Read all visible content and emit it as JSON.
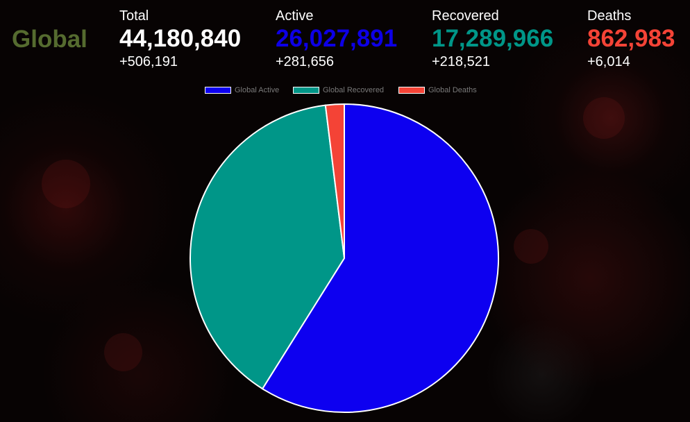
{
  "header": {
    "region_label": "Global",
    "region_color": "#556b2f",
    "stats": [
      {
        "key": "total",
        "label": "Total",
        "value": "44,180,840",
        "delta": "+506,191",
        "color": "#ffffff"
      },
      {
        "key": "active",
        "label": "Active",
        "value": "26,027,891",
        "delta": "+281,656",
        "color": "#0d00e6"
      },
      {
        "key": "recovered",
        "label": "Recovered",
        "value": "17,289,966",
        "delta": "+218,521",
        "color": "#009688"
      },
      {
        "key": "deaths",
        "label": "Deaths",
        "value": "862,983",
        "delta": "+6,014",
        "color": "#f44336"
      }
    ]
  },
  "chart_data": {
    "type": "pie",
    "title": "",
    "legend_position": "top",
    "categories": [
      "Global Active",
      "Global Recovered",
      "Global Deaths"
    ],
    "values": [
      26027891,
      17289966,
      862983
    ],
    "colors": [
      "#0d00f0",
      "#009688",
      "#f44336"
    ],
    "border_color": "#ffffff"
  }
}
